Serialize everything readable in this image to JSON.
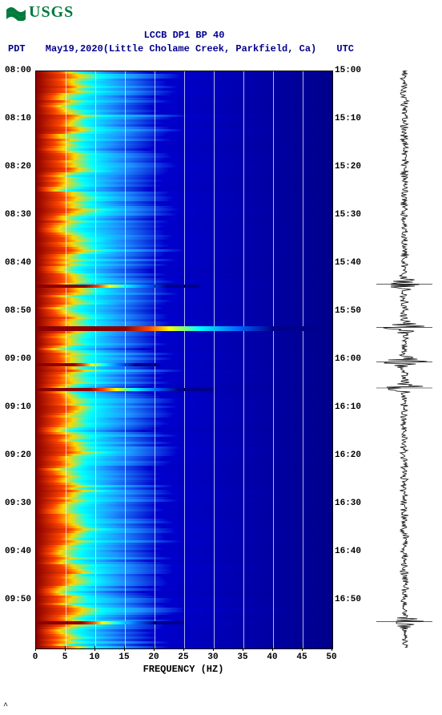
{
  "logo": {
    "text": "USGS",
    "color": "#007a3d"
  },
  "header": {
    "title_line1": "LCCB DP1 BP 40",
    "date": "May19,2020",
    "site": "(Little Cholame Creek, Parkfield, Ca)",
    "left_tz": "PDT",
    "right_tz": "UTC"
  },
  "spectrogram": {
    "type": "spectrogram",
    "xlim": [
      0,
      50
    ],
    "xtick_step": 5,
    "xlabel": "FREQUENCY (HZ)",
    "background_color": "#00008b",
    "grid_color": "#ffffff",
    "left_ticks": [
      "08:00",
      "08:10",
      "08:20",
      "08:30",
      "08:40",
      "08:50",
      "09:00",
      "09:10",
      "09:20",
      "09:30",
      "09:40",
      "09:50"
    ],
    "right_ticks": [
      "15:00",
      "15:10",
      "15:20",
      "15:30",
      "15:40",
      "15:50",
      "16:00",
      "16:10",
      "16:20",
      "16:30",
      "16:40",
      "16:50"
    ],
    "tick_fontsize": 11,
    "label_fontsize": 12,
    "low_freq_gradient": [
      "#8b0000",
      "#ff4500",
      "#ffd700",
      "#adff2f",
      "#00ffff",
      "#1e90ff",
      "#0000cd",
      "#00008b"
    ],
    "event_rows_pct": [
      37.2,
      44.5,
      50.8,
      55.2,
      95.5
    ],
    "event_widths_pct": [
      55,
      100,
      42,
      60,
      50
    ]
  },
  "seismogram": {
    "type": "waveform",
    "color": "#000000",
    "baseline_x": 35,
    "noise_amp": 6,
    "events_pct": [
      37,
      44.5,
      50.5,
      55,
      95.5
    ],
    "event_amp": 30
  },
  "footer": {
    "mark": "^"
  }
}
